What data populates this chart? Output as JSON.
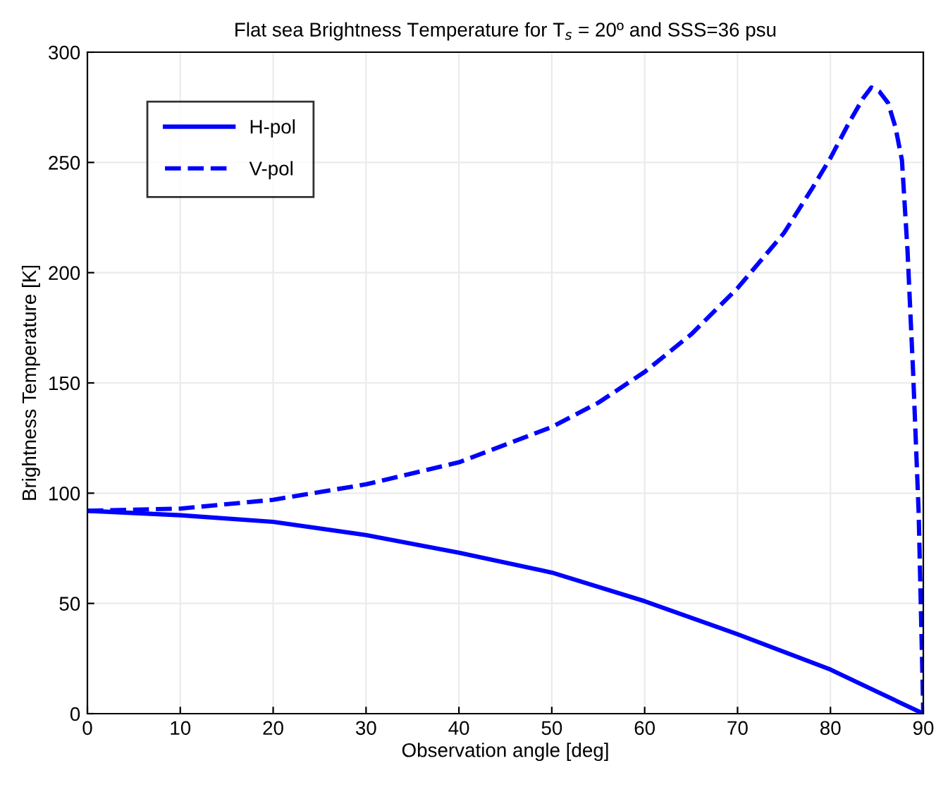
{
  "chart_data": {
    "type": "line",
    "title": "Flat sea Brightness Temperature for T$_{s}$ = 20º and SSS=36 psu",
    "xlabel": "Observation angle [deg]",
    "ylabel": "Brightness Temperature [K]",
    "series": [
      {
        "name": "H-pol",
        "color": "#0000ff",
        "line_style": "solid",
        "x": [
          0,
          10,
          20,
          30,
          40,
          50,
          60,
          70,
          80,
          85,
          90
        ],
        "values": [
          92,
          90,
          87,
          81,
          73,
          64,
          51,
          36,
          20,
          10,
          0
        ]
      },
      {
        "name": "V-pol",
        "color": "#0000ff",
        "line_style": "dashed",
        "x": [
          0,
          10,
          20,
          30,
          40,
          50,
          55,
          60,
          65,
          70,
          75,
          78,
          80,
          82,
          83.5,
          84.4,
          85.3,
          86.2,
          87,
          87.7,
          88.3,
          88.9,
          89.5,
          90
        ],
        "values": [
          92,
          93,
          97,
          104,
          114,
          130,
          141,
          155,
          172,
          193,
          218,
          238,
          252,
          268,
          279,
          284,
          282,
          277,
          266,
          251,
          210,
          155,
          91,
          0
        ]
      }
    ],
    "xlim": [
      0,
      90
    ],
    "xticks": [
      0,
      10,
      20,
      30,
      40,
      50,
      60,
      70,
      80,
      90
    ],
    "ylim": [
      0,
      300
    ],
    "yticks": [
      0,
      50,
      100,
      150,
      200,
      250,
      300
    ],
    "grid": true,
    "legend": "top left"
  }
}
